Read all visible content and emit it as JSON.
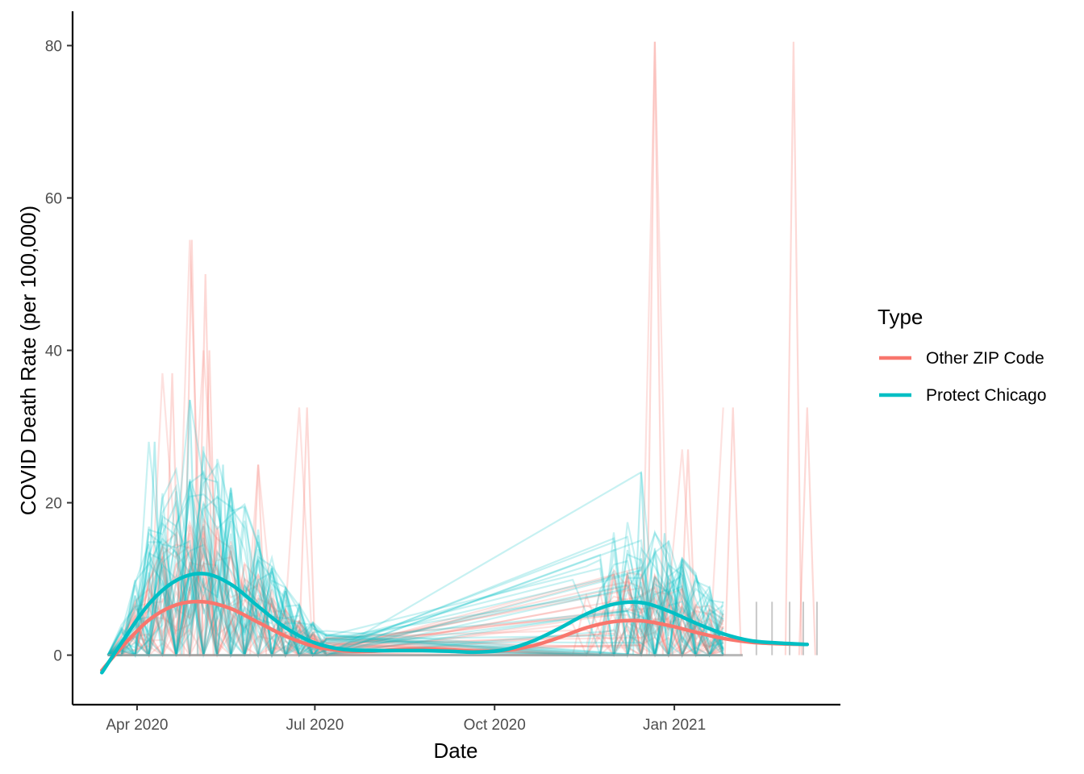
{
  "chart_data": {
    "type": "line",
    "xlabel": "Date",
    "ylabel": "COVID Death Rate (per 100,000)",
    "x_ticks": [
      "Apr 2020",
      "Jul 2020",
      "Oct 2020",
      "Jan 2021"
    ],
    "x_tick_dates": [
      "2020-04-01",
      "2020-07-01",
      "2020-10-01",
      "2021-01-01"
    ],
    "xlim": [
      "2020-02-28",
      "2021-03-27"
    ],
    "y_ticks": [
      "0",
      "20",
      "40",
      "60",
      "80"
    ],
    "ylim": [
      -6.5,
      84.5
    ],
    "grid": false,
    "legend": {
      "title": "Type",
      "position": "right",
      "entries": [
        {
          "label": "Other ZIP Code",
          "color": "#F8766D"
        },
        {
          "label": "Protect Chicago",
          "color": "#00BFC4"
        }
      ]
    },
    "series": [
      {
        "name": "Other ZIP Code",
        "color": "#F8766D",
        "smooth": [
          {
            "x": "2020-03-14",
            "y": -2.0
          },
          {
            "x": "2020-03-24",
            "y": 1.0
          },
          {
            "x": "2020-04-07",
            "y": 4.6
          },
          {
            "x": "2020-04-21",
            "y": 6.6
          },
          {
            "x": "2020-05-05",
            "y": 7.0
          },
          {
            "x": "2020-05-19",
            "y": 6.1
          },
          {
            "x": "2020-06-02",
            "y": 4.3
          },
          {
            "x": "2020-06-16",
            "y": 2.5
          },
          {
            "x": "2020-06-30",
            "y": 1.2
          },
          {
            "x": "2020-07-14",
            "y": 0.6
          },
          {
            "x": "2020-07-28",
            "y": 0.5
          },
          {
            "x": "2020-08-11",
            "y": 0.7
          },
          {
            "x": "2020-08-25",
            "y": 0.8
          },
          {
            "x": "2020-09-08",
            "y": 0.7
          },
          {
            "x": "2020-09-22",
            "y": 0.5
          },
          {
            "x": "2020-10-06",
            "y": 0.6
          },
          {
            "x": "2020-10-20",
            "y": 1.2
          },
          {
            "x": "2020-11-03",
            "y": 2.3
          },
          {
            "x": "2020-11-17",
            "y": 3.6
          },
          {
            "x": "2020-12-01",
            "y": 4.4
          },
          {
            "x": "2020-12-15",
            "y": 4.5
          },
          {
            "x": "2020-12-29",
            "y": 3.9
          },
          {
            "x": "2021-01-12",
            "y": 3.0
          },
          {
            "x": "2021-01-26",
            "y": 2.2
          },
          {
            "x": "2021-02-09",
            "y": 1.7
          },
          {
            "x": "2021-02-23",
            "y": 1.5
          },
          {
            "x": "2021-03-10",
            "y": 1.4
          }
        ],
        "peaks": [
          {
            "x": "2020-04-29",
            "y": 54.5
          },
          {
            "x": "2020-05-06",
            "y": 50.0
          },
          {
            "x": "2020-05-08",
            "y": 40.0
          },
          {
            "x": "2020-04-19",
            "y": 37.0
          },
          {
            "x": "2020-06-27",
            "y": 32.5
          },
          {
            "x": "2020-06-02",
            "y": 25.0
          },
          {
            "x": "2020-12-22",
            "y": 80.5
          },
          {
            "x": "2021-03-03",
            "y": 80.5
          },
          {
            "x": "2021-01-08",
            "y": 27.0
          },
          {
            "x": "2021-01-31",
            "y": 32.5
          },
          {
            "x": "2021-03-10",
            "y": 32.5
          }
        ]
      },
      {
        "name": "Protect Chicago",
        "color": "#00BFC4",
        "smooth": [
          {
            "x": "2020-03-14",
            "y": -2.3
          },
          {
            "x": "2020-03-24",
            "y": 1.6
          },
          {
            "x": "2020-04-07",
            "y": 6.7
          },
          {
            "x": "2020-04-21",
            "y": 9.8
          },
          {
            "x": "2020-05-05",
            "y": 10.7
          },
          {
            "x": "2020-05-19",
            "y": 9.3
          },
          {
            "x": "2020-06-02",
            "y": 6.4
          },
          {
            "x": "2020-06-16",
            "y": 3.6
          },
          {
            "x": "2020-06-30",
            "y": 1.7
          },
          {
            "x": "2020-07-14",
            "y": 0.8
          },
          {
            "x": "2020-07-28",
            "y": 0.6
          },
          {
            "x": "2020-08-11",
            "y": 0.6
          },
          {
            "x": "2020-08-25",
            "y": 0.6
          },
          {
            "x": "2020-09-08",
            "y": 0.5
          },
          {
            "x": "2020-09-22",
            "y": 0.4
          },
          {
            "x": "2020-10-06",
            "y": 0.7
          },
          {
            "x": "2020-10-20",
            "y": 1.8
          },
          {
            "x": "2020-11-03",
            "y": 3.5
          },
          {
            "x": "2020-11-17",
            "y": 5.4
          },
          {
            "x": "2020-12-01",
            "y": 6.7
          },
          {
            "x": "2020-12-15",
            "y": 6.9
          },
          {
            "x": "2020-12-29",
            "y": 5.8
          },
          {
            "x": "2021-01-12",
            "y": 4.2
          },
          {
            "x": "2021-01-26",
            "y": 2.8
          },
          {
            "x": "2021-02-09",
            "y": 1.9
          },
          {
            "x": "2021-02-23",
            "y": 1.6
          },
          {
            "x": "2021-03-10",
            "y": 1.4
          }
        ],
        "peaks": [
          {
            "x": "2020-04-28",
            "y": 33.5
          },
          {
            "x": "2020-04-10",
            "y": 28.0
          },
          {
            "x": "2020-05-15",
            "y": 25.0
          },
          {
            "x": "2020-12-15",
            "y": 24.0
          },
          {
            "x": "2020-12-27",
            "y": 16.0
          }
        ]
      }
    ]
  }
}
